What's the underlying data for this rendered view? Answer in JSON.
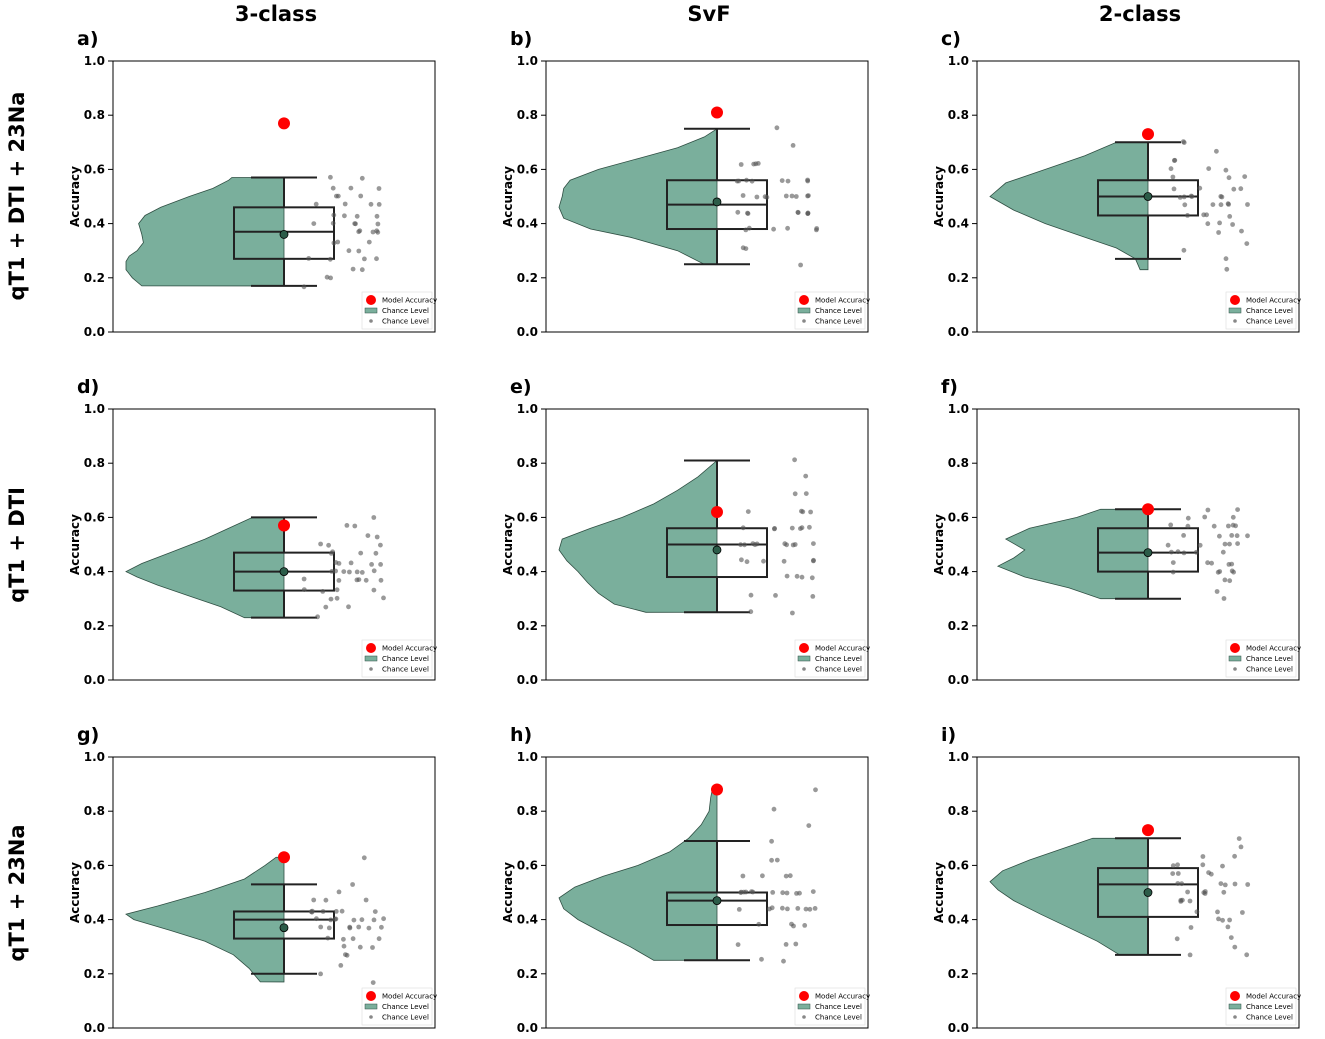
{
  "figure": {
    "col_titles": [
      "3-class",
      "SvF",
      "2-class"
    ],
    "row_titles": [
      "qT1 + DTI + 23Na",
      "qT1 + DTI",
      "qT1 + 23Na"
    ],
    "colors": {
      "violin_fill": "#7aaf9c",
      "violin_edge": "#2f4f43",
      "model_point": "#ff0000",
      "chance_point": "#555555",
      "box_edge": "#222222",
      "mean_point": "#2c5c49"
    },
    "legend": {
      "position": "lower-right",
      "entries": [
        "Model Accuracy",
        "Chance Level",
        "Chance Level"
      ]
    }
  },
  "chart_data": [
    {
      "panel": "a)",
      "type": "raincloud",
      "ylabel": "Accuracy",
      "ylim": [
        0,
        1
      ],
      "yticks": [
        "0.0",
        "0.2",
        "0.4",
        "0.6",
        "0.8",
        "1.0"
      ],
      "model_accuracy": 0.77,
      "box": {
        "min": 0.17,
        "q1": 0.27,
        "median": 0.37,
        "q3": 0.46,
        "max": 0.57
      },
      "mean": 0.36,
      "density": [
        [
          0.17,
          0.9
        ],
        [
          0.2,
          0.96
        ],
        [
          0.23,
          1.0
        ],
        [
          0.26,
          1.0
        ],
        [
          0.28,
          0.98
        ],
        [
          0.3,
          0.93
        ],
        [
          0.33,
          0.89
        ],
        [
          0.36,
          0.9
        ],
        [
          0.4,
          0.92
        ],
        [
          0.43,
          0.88
        ],
        [
          0.46,
          0.78
        ],
        [
          0.5,
          0.6
        ],
        [
          0.53,
          0.45
        ],
        [
          0.56,
          0.35
        ],
        [
          0.57,
          0.33
        ]
      ],
      "chance_points": [
        0.17,
        0.2,
        0.23,
        0.27,
        0.27,
        0.3,
        0.33,
        0.33,
        0.37,
        0.37,
        0.37,
        0.4,
        0.4,
        0.4,
        0.43,
        0.43,
        0.47,
        0.47,
        0.5,
        0.53,
        0.57,
        0.27,
        0.3,
        0.33,
        0.37,
        0.4,
        0.43,
        0.47,
        0.5,
        0.53,
        0.2,
        0.23,
        0.27,
        0.37,
        0.4,
        0.43,
        0.47,
        0.5,
        0.53,
        0.57
      ]
    },
    {
      "panel": "b)",
      "type": "raincloud",
      "ylabel": "Accuracy",
      "ylim": [
        0,
        1
      ],
      "yticks": [
        "0.0",
        "0.2",
        "0.4",
        "0.6",
        "0.8",
        "1.0"
      ],
      "model_accuracy": 0.81,
      "box": {
        "min": 0.25,
        "q1": 0.38,
        "median": 0.47,
        "q3": 0.56,
        "max": 0.75
      },
      "mean": 0.48,
      "density": [
        [
          0.25,
          0.08
        ],
        [
          0.3,
          0.25
        ],
        [
          0.35,
          0.55
        ],
        [
          0.38,
          0.8
        ],
        [
          0.42,
          0.97
        ],
        [
          0.46,
          1.0
        ],
        [
          0.5,
          0.98
        ],
        [
          0.53,
          0.97
        ],
        [
          0.56,
          0.93
        ],
        [
          0.6,
          0.75
        ],
        [
          0.64,
          0.5
        ],
        [
          0.68,
          0.25
        ],
        [
          0.72,
          0.08
        ],
        [
          0.75,
          0.0
        ]
      ],
      "chance_points": [
        0.25,
        0.31,
        0.31,
        0.38,
        0.38,
        0.38,
        0.38,
        0.44,
        0.44,
        0.44,
        0.44,
        0.44,
        0.5,
        0.5,
        0.5,
        0.5,
        0.5,
        0.5,
        0.56,
        0.56,
        0.56,
        0.56,
        0.56,
        0.56,
        0.62,
        0.62,
        0.62,
        0.69,
        0.75,
        0.38,
        0.44,
        0.5,
        0.56,
        0.38,
        0.44,
        0.5,
        0.56,
        0.62,
        0.44,
        0.5
      ]
    },
    {
      "panel": "c)",
      "type": "raincloud",
      "ylabel": "Accuracy",
      "ylim": [
        0,
        1
      ],
      "yticks": [
        "0.0",
        "0.2",
        "0.4",
        "0.6",
        "0.8",
        "1.0"
      ],
      "model_accuracy": 0.73,
      "box": {
        "min": 0.27,
        "q1": 0.43,
        "median": 0.5,
        "q3": 0.56,
        "max": 0.7
      },
      "mean": 0.5,
      "density": [
        [
          0.23,
          0.05
        ],
        [
          0.27,
          0.08
        ],
        [
          0.31,
          0.2
        ],
        [
          0.35,
          0.4
        ],
        [
          0.4,
          0.65
        ],
        [
          0.45,
          0.85
        ],
        [
          0.5,
          1.0
        ],
        [
          0.55,
          0.9
        ],
        [
          0.6,
          0.65
        ],
        [
          0.65,
          0.4
        ],
        [
          0.7,
          0.2
        ]
      ],
      "chance_points": [
        0.23,
        0.27,
        0.3,
        0.33,
        0.37,
        0.37,
        0.4,
        0.4,
        0.43,
        0.43,
        0.43,
        0.47,
        0.47,
        0.47,
        0.47,
        0.5,
        0.5,
        0.5,
        0.5,
        0.53,
        0.53,
        0.53,
        0.57,
        0.57,
        0.6,
        0.6,
        0.63,
        0.63,
        0.67,
        0.7,
        0.7,
        0.43,
        0.47,
        0.5,
        0.53,
        0.57,
        0.4,
        0.5,
        0.6,
        0.47
      ]
    },
    {
      "panel": "d)",
      "type": "raincloud",
      "ylabel": "Accuracy",
      "ylim": [
        0,
        1
      ],
      "yticks": [
        "0.0",
        "0.2",
        "0.4",
        "0.6",
        "0.8",
        "1.0"
      ],
      "model_accuracy": 0.57,
      "box": {
        "min": 0.23,
        "q1": 0.33,
        "median": 0.4,
        "q3": 0.47,
        "max": 0.6
      },
      "mean": 0.4,
      "density": [
        [
          0.23,
          0.25
        ],
        [
          0.27,
          0.4
        ],
        [
          0.31,
          0.6
        ],
        [
          0.35,
          0.8
        ],
        [
          0.38,
          0.93
        ],
        [
          0.4,
          1.0
        ],
        [
          0.43,
          0.9
        ],
        [
          0.47,
          0.72
        ],
        [
          0.52,
          0.5
        ],
        [
          0.56,
          0.35
        ],
        [
          0.6,
          0.2
        ]
      ],
      "chance_points": [
        0.23,
        0.27,
        0.27,
        0.3,
        0.3,
        0.33,
        0.33,
        0.33,
        0.37,
        0.37,
        0.37,
        0.37,
        0.4,
        0.4,
        0.4,
        0.4,
        0.4,
        0.43,
        0.43,
        0.43,
        0.47,
        0.47,
        0.47,
        0.5,
        0.5,
        0.53,
        0.53,
        0.57,
        0.57,
        0.6,
        0.33,
        0.37,
        0.4,
        0.43,
        0.47,
        0.3,
        0.4,
        0.5,
        0.37,
        0.43
      ]
    },
    {
      "panel": "e)",
      "type": "raincloud",
      "ylabel": "Accuracy",
      "ylim": [
        0,
        1
      ],
      "yticks": [
        "0.0",
        "0.2",
        "0.4",
        "0.6",
        "0.8",
        "1.0"
      ],
      "model_accuracy": 0.62,
      "box": {
        "min": 0.25,
        "q1": 0.38,
        "median": 0.5,
        "q3": 0.56,
        "max": 0.81
      },
      "mean": 0.48,
      "density": [
        [
          0.25,
          0.45
        ],
        [
          0.28,
          0.65
        ],
        [
          0.32,
          0.75
        ],
        [
          0.36,
          0.82
        ],
        [
          0.4,
          0.88
        ],
        [
          0.44,
          0.95
        ],
        [
          0.48,
          1.0
        ],
        [
          0.52,
          0.98
        ],
        [
          0.56,
          0.8
        ],
        [
          0.6,
          0.6
        ],
        [
          0.65,
          0.4
        ],
        [
          0.7,
          0.25
        ],
        [
          0.75,
          0.12
        ],
        [
          0.81,
          0.0
        ]
      ],
      "chance_points": [
        0.25,
        0.25,
        0.31,
        0.31,
        0.38,
        0.38,
        0.38,
        0.44,
        0.44,
        0.44,
        0.5,
        0.5,
        0.5,
        0.5,
        0.5,
        0.5,
        0.56,
        0.56,
        0.56,
        0.56,
        0.62,
        0.62,
        0.62,
        0.69,
        0.69,
        0.75,
        0.81,
        0.44,
        0.5,
        0.56,
        0.38,
        0.44,
        0.5,
        0.56,
        0.62,
        0.31,
        0.44,
        0.5,
        0.56,
        0.5
      ]
    },
    {
      "panel": "f)",
      "type": "raincloud",
      "ylabel": "Accuracy",
      "ylim": [
        0,
        1
      ],
      "yticks": [
        "0.0",
        "0.2",
        "0.4",
        "0.6",
        "0.8",
        "1.0"
      ],
      "model_accuracy": 0.63,
      "box": {
        "min": 0.3,
        "q1": 0.4,
        "median": 0.47,
        "q3": 0.56,
        "max": 0.63
      },
      "mean": 0.47,
      "density": [
        [
          0.3,
          0.3
        ],
        [
          0.34,
          0.5
        ],
        [
          0.38,
          0.78
        ],
        [
          0.42,
          0.95
        ],
        [
          0.45,
          0.85
        ],
        [
          0.48,
          0.78
        ],
        [
          0.52,
          0.9
        ],
        [
          0.56,
          0.75
        ],
        [
          0.6,
          0.45
        ],
        [
          0.63,
          0.3
        ]
      ],
      "chance_points": [
        0.3,
        0.33,
        0.37,
        0.37,
        0.4,
        0.4,
        0.4,
        0.43,
        0.43,
        0.43,
        0.47,
        0.47,
        0.47,
        0.5,
        0.5,
        0.5,
        0.5,
        0.53,
        0.53,
        0.53,
        0.57,
        0.57,
        0.57,
        0.57,
        0.6,
        0.6,
        0.63,
        0.63,
        0.4,
        0.43,
        0.47,
        0.5,
        0.53,
        0.57,
        0.6,
        0.43,
        0.47,
        0.53,
        0.57,
        0.4
      ]
    },
    {
      "panel": "g)",
      "type": "raincloud",
      "ylabel": "Accuracy",
      "ylim": [
        0,
        1
      ],
      "yticks": [
        "0.0",
        "0.2",
        "0.4",
        "0.6",
        "0.8",
        "1.0"
      ],
      "model_accuracy": 0.63,
      "box": {
        "min": 0.2,
        "q1": 0.33,
        "median": 0.4,
        "q3": 0.43,
        "max": 0.53
      },
      "mean": 0.37,
      "density": [
        [
          0.17,
          0.15
        ],
        [
          0.22,
          0.22
        ],
        [
          0.27,
          0.32
        ],
        [
          0.32,
          0.5
        ],
        [
          0.36,
          0.72
        ],
        [
          0.4,
          0.95
        ],
        [
          0.42,
          1.0
        ],
        [
          0.45,
          0.8
        ],
        [
          0.5,
          0.5
        ],
        [
          0.55,
          0.25
        ],
        [
          0.6,
          0.12
        ],
        [
          0.63,
          0.05
        ]
      ],
      "chance_points": [
        0.17,
        0.2,
        0.23,
        0.27,
        0.27,
        0.3,
        0.3,
        0.33,
        0.33,
        0.33,
        0.37,
        0.37,
        0.37,
        0.37,
        0.4,
        0.4,
        0.4,
        0.4,
        0.4,
        0.43,
        0.43,
        0.43,
        0.43,
        0.47,
        0.47,
        0.5,
        0.53,
        0.63,
        0.33,
        0.37,
        0.4,
        0.43,
        0.37,
        0.4,
        0.43,
        0.3,
        0.4,
        0.43,
        0.47,
        0.37
      ]
    },
    {
      "panel": "h)",
      "type": "raincloud",
      "ylabel": "Accuracy",
      "ylim": [
        0,
        1
      ],
      "yticks": [
        "0.0",
        "0.2",
        "0.4",
        "0.6",
        "0.8",
        "1.0"
      ],
      "model_accuracy": 0.88,
      "box": {
        "min": 0.25,
        "q1": 0.38,
        "median": 0.47,
        "q3": 0.5,
        "max": 0.69
      },
      "mean": 0.47,
      "density": [
        [
          0.25,
          0.4
        ],
        [
          0.3,
          0.55
        ],
        [
          0.35,
          0.72
        ],
        [
          0.4,
          0.88
        ],
        [
          0.44,
          0.97
        ],
        [
          0.48,
          1.0
        ],
        [
          0.52,
          0.9
        ],
        [
          0.56,
          0.72
        ],
        [
          0.6,
          0.5
        ],
        [
          0.65,
          0.3
        ],
        [
          0.7,
          0.18
        ],
        [
          0.75,
          0.1
        ],
        [
          0.8,
          0.05
        ],
        [
          0.85,
          0.04
        ],
        [
          0.88,
          0.03
        ]
      ],
      "chance_points": [
        0.25,
        0.25,
        0.31,
        0.31,
        0.38,
        0.38,
        0.38,
        0.44,
        0.44,
        0.44,
        0.44,
        0.44,
        0.5,
        0.5,
        0.5,
        0.5,
        0.5,
        0.5,
        0.5,
        0.56,
        0.56,
        0.56,
        0.62,
        0.62,
        0.69,
        0.75,
        0.81,
        0.88,
        0.44,
        0.5,
        0.44,
        0.5,
        0.56,
        0.38,
        0.44,
        0.5,
        0.31,
        0.44,
        0.5,
        0.5
      ]
    },
    {
      "panel": "i)",
      "type": "raincloud",
      "ylabel": "Accuracy",
      "ylim": [
        0,
        1
      ],
      "yticks": [
        "0.0",
        "0.2",
        "0.4",
        "0.6",
        "0.8",
        "1.0"
      ],
      "model_accuracy": 0.73,
      "box": {
        "min": 0.27,
        "q1": 0.41,
        "median": 0.53,
        "q3": 0.59,
        "max": 0.7
      },
      "mean": 0.5,
      "density": [
        [
          0.27,
          0.18
        ],
        [
          0.32,
          0.32
        ],
        [
          0.37,
          0.5
        ],
        [
          0.42,
          0.68
        ],
        [
          0.47,
          0.85
        ],
        [
          0.51,
          0.95
        ],
        [
          0.54,
          1.0
        ],
        [
          0.58,
          0.92
        ],
        [
          0.62,
          0.75
        ],
        [
          0.66,
          0.55
        ],
        [
          0.7,
          0.35
        ]
      ],
      "chance_points": [
        0.27,
        0.27,
        0.3,
        0.33,
        0.33,
        0.37,
        0.37,
        0.4,
        0.4,
        0.43,
        0.43,
        0.47,
        0.47,
        0.5,
        0.5,
        0.5,
        0.53,
        0.53,
        0.53,
        0.53,
        0.57,
        0.57,
        0.57,
        0.6,
        0.6,
        0.63,
        0.63,
        0.67,
        0.7,
        0.4,
        0.47,
        0.5,
        0.53,
        0.57,
        0.6,
        0.43,
        0.5,
        0.53,
        0.6,
        0.47
      ]
    }
  ]
}
